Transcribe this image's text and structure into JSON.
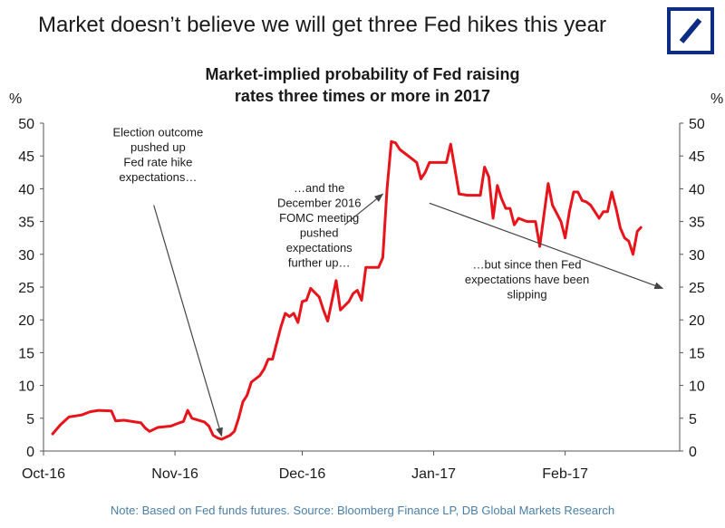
{
  "headline": "Market doesn’t believe we will get three Fed hikes this year",
  "logo_icon": "deutsche-bank-slash-logo",
  "colors": {
    "line": "#e8141b",
    "logo": "#0c2d83",
    "note": "#4a7fa8",
    "text": "#1a1a1a"
  },
  "footnote": "Note: Based on Fed funds futures. Source: Bloomberg Finance LP,  DB Global Markets Research",
  "chart_data": {
    "type": "line",
    "title_lines": [
      "Market-implied probability of Fed raising",
      "rates three times or more in 2017"
    ],
    "xlabel": "",
    "ylabel_left": "%",
    "ylabel_right": "%",
    "ylim": [
      0,
      50
    ],
    "yticks": [
      0,
      5,
      10,
      15,
      20,
      25,
      30,
      35,
      40,
      45,
      50
    ],
    "xlim": [
      "2016-10-01",
      "2017-02-28"
    ],
    "xticks": [
      {
        "date": "2016-10-01",
        "label": "Oct-16"
      },
      {
        "date": "2016-11-01",
        "label": "Nov-16"
      },
      {
        "date": "2016-12-01",
        "label": "Dec-16"
      },
      {
        "date": "2017-01-01",
        "label": "Jan-17"
      },
      {
        "date": "2017-02-01",
        "label": "Feb-17"
      }
    ],
    "grid": false,
    "series": [
      {
        "name": "",
        "points": [
          [
            "2016-10-03",
            2.5
          ],
          [
            "2016-10-05",
            4.0
          ],
          [
            "2016-10-07",
            5.2
          ],
          [
            "2016-10-10",
            5.5
          ],
          [
            "2016-10-12",
            6.0
          ],
          [
            "2016-10-14",
            6.2
          ],
          [
            "2016-10-17",
            6.1
          ],
          [
            "2016-10-18",
            4.6
          ],
          [
            "2016-10-20",
            4.7
          ],
          [
            "2016-10-24",
            4.3
          ],
          [
            "2016-10-25",
            3.5
          ],
          [
            "2016-10-26",
            3.0
          ],
          [
            "2016-10-28",
            3.6
          ],
          [
            "2016-10-31",
            3.8
          ],
          [
            "2016-11-02",
            4.3
          ],
          [
            "2016-11-03",
            4.5
          ],
          [
            "2016-11-04",
            6.2
          ],
          [
            "2016-11-05",
            5.0
          ],
          [
            "2016-11-08",
            4.4
          ],
          [
            "2016-11-09",
            3.8
          ],
          [
            "2016-11-10",
            2.4
          ],
          [
            "2016-11-11",
            2.0
          ],
          [
            "2016-11-12",
            1.8
          ],
          [
            "2016-11-14",
            2.4
          ],
          [
            "2016-11-15",
            3.0
          ],
          [
            "2016-11-16",
            5.0
          ],
          [
            "2016-11-17",
            7.5
          ],
          [
            "2016-11-18",
            8.5
          ],
          [
            "2016-11-19",
            10.5
          ],
          [
            "2016-11-21",
            11.5
          ],
          [
            "2016-11-22",
            12.5
          ],
          [
            "2016-11-23",
            14.0
          ],
          [
            "2016-11-24",
            14.0
          ],
          [
            "2016-11-26",
            19.0
          ],
          [
            "2016-11-27",
            21.0
          ],
          [
            "2016-11-28",
            20.5
          ],
          [
            "2016-11-29",
            21.0
          ],
          [
            "2016-11-30",
            19.6
          ],
          [
            "2016-12-01",
            22.8
          ],
          [
            "2016-12-02",
            23.0
          ],
          [
            "2016-12-03",
            24.8
          ],
          [
            "2016-12-05",
            23.5
          ],
          [
            "2016-12-06",
            21.5
          ],
          [
            "2016-12-07",
            19.8
          ],
          [
            "2016-12-09",
            26.0
          ],
          [
            "2016-12-10",
            21.5
          ],
          [
            "2016-12-12",
            22.8
          ],
          [
            "2016-12-13",
            24.0
          ],
          [
            "2016-12-14",
            24.5
          ],
          [
            "2016-12-15",
            23.0
          ],
          [
            "2016-12-16",
            28.0
          ],
          [
            "2016-12-17",
            28.0
          ],
          [
            "2016-12-19",
            28.0
          ],
          [
            "2016-12-20",
            29.5
          ],
          [
            "2016-12-21",
            40.0
          ],
          [
            "2016-12-22",
            47.2
          ],
          [
            "2016-12-23",
            47.0
          ],
          [
            "2016-12-24",
            46.0
          ],
          [
            "2016-12-27",
            44.5
          ],
          [
            "2016-12-28",
            44.0
          ],
          [
            "2016-12-29",
            41.5
          ],
          [
            "2016-12-30",
            42.5
          ],
          [
            "2016-12-31",
            44.0
          ],
          [
            "2017-01-02",
            44.0
          ],
          [
            "2017-01-04",
            44.0
          ],
          [
            "2017-01-05",
            46.8
          ],
          [
            "2017-01-06",
            43.0
          ],
          [
            "2017-01-07",
            39.2
          ],
          [
            "2017-01-09",
            39.0
          ],
          [
            "2017-01-11",
            39.0
          ],
          [
            "2017-01-12",
            39.0
          ],
          [
            "2017-01-13",
            43.3
          ],
          [
            "2017-01-14",
            41.8
          ],
          [
            "2017-01-15",
            35.5
          ],
          [
            "2017-01-16",
            40.5
          ],
          [
            "2017-01-17",
            38.5
          ],
          [
            "2017-01-18",
            37.0
          ],
          [
            "2017-01-19",
            37.0
          ],
          [
            "2017-01-20",
            34.5
          ],
          [
            "2017-01-21",
            35.5
          ],
          [
            "2017-01-23",
            35.0
          ],
          [
            "2017-01-24",
            35.0
          ],
          [
            "2017-01-25",
            35.0
          ],
          [
            "2017-01-26",
            31.2
          ],
          [
            "2017-01-27",
            36.0
          ],
          [
            "2017-01-28",
            40.8
          ],
          [
            "2017-01-29",
            37.5
          ],
          [
            "2017-01-31",
            35.0
          ],
          [
            "2017-02-01",
            32.5
          ],
          [
            "2017-02-02",
            36.5
          ],
          [
            "2017-02-03",
            39.5
          ],
          [
            "2017-02-04",
            39.5
          ],
          [
            "2017-02-05",
            38.2
          ],
          [
            "2017-02-06",
            38.0
          ],
          [
            "2017-02-07",
            37.5
          ],
          [
            "2017-02-08",
            36.5
          ],
          [
            "2017-02-09",
            35.5
          ],
          [
            "2017-02-10",
            36.5
          ],
          [
            "2017-02-11",
            36.5
          ],
          [
            "2017-02-12",
            39.5
          ],
          [
            "2017-02-13",
            37.0
          ],
          [
            "2017-02-14",
            34.0
          ],
          [
            "2017-02-15",
            32.5
          ],
          [
            "2017-02-16",
            32.0
          ],
          [
            "2017-02-17",
            30.0
          ],
          [
            "2017-02-18",
            33.5
          ],
          [
            "2017-02-19",
            34.2
          ]
        ]
      }
    ],
    "annotations": [
      {
        "lines": [
          "Election outcome",
          "pushed up",
          "Fed rate hike",
          "expectations…"
        ],
        "text_anchor": [
          "2016-10-28",
          48.0
        ],
        "arrow_from": [
          "2016-10-27",
          37.5
        ],
        "arrow_to": [
          "2016-11-12",
          2.3
        ]
      },
      {
        "lines": [
          "…and the",
          "December 2016",
          "FOMC meeting",
          "pushed",
          "expectations",
          "further up…"
        ],
        "text_anchor": [
          "2016-12-05",
          39.5
        ],
        "arrow_from": [
          "2016-12-11",
          34.5
        ],
        "arrow_to": [
          "2016-12-20",
          39.2
        ]
      },
      {
        "lines": [
          "…but since then Fed",
          "expectations have been",
          "slipping"
        ],
        "text_anchor": [
          "2017-01-23",
          27.8
        ],
        "arrow_from": [
          "2016-12-31",
          37.8
        ],
        "arrow_to": [
          "2017-02-24",
          24.8
        ]
      }
    ]
  }
}
